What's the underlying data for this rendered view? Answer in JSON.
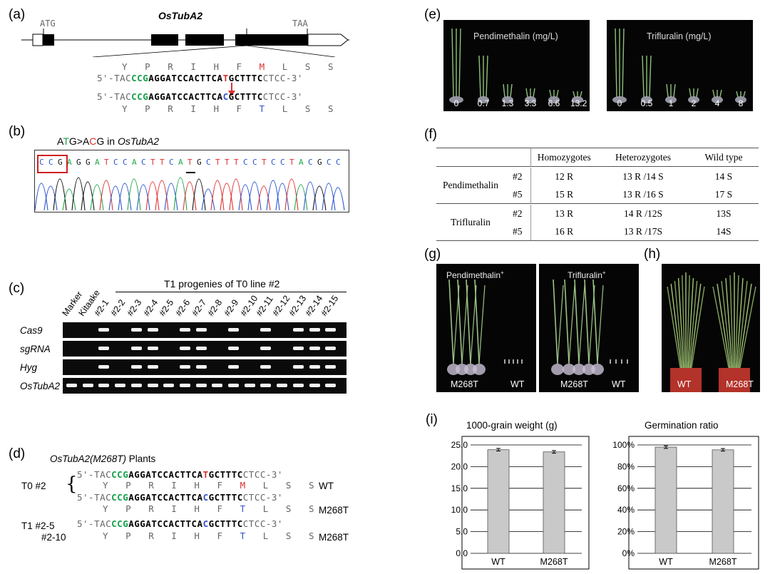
{
  "panels": {
    "a": "(a)",
    "b": "(b)",
    "c": "(c)",
    "d": "(d)",
    "e": "(e)",
    "f": "(f)",
    "g": "(g)",
    "h": "(h)",
    "i": "(i)"
  },
  "panel_a": {
    "gene": "OsTubA2",
    "start_codon": "ATG",
    "stop_codon": "TAA",
    "aa_wt": [
      "Y",
      "P",
      "R",
      "I",
      "H",
      "F",
      "M",
      "L",
      "S",
      "S"
    ],
    "aa_mut": [
      "Y",
      "P",
      "R",
      "I",
      "H",
      "F",
      "T",
      "L",
      "S",
      "S"
    ],
    "seq_wt": {
      "p1": "5'-TAC",
      "p2": "CCG",
      "p3": "AGGATCCACTTCA",
      "p4": "T",
      "p5": "GCTTTC",
      "p6": "CTCC-3'"
    },
    "seq_mut": {
      "p1": "5'-TAC",
      "p2": "CCG",
      "p3": "AGGATCCACTTCA",
      "p4": "C",
      "p5": "GCTTTC",
      "p6": "CTCC-3'"
    }
  },
  "panel_b": {
    "title_pre": "A",
    "title_t": "T",
    "title_mid": "G>A",
    "title_c": "C",
    "title_post": "G  in ",
    "title_gene": "OsTubA2",
    "bases": [
      "C",
      "C",
      "G",
      "A",
      "G",
      "G",
      "A",
      "T",
      "C",
      "C",
      "A",
      "C",
      "T",
      "T",
      "C",
      "A",
      "T",
      "G",
      "C",
      "T",
      "T",
      "T",
      "C",
      "C",
      "T",
      "C",
      "C",
      "T",
      "A",
      "C",
      "G",
      "C",
      "C"
    ]
  },
  "panel_c": {
    "header": "T1 progenies of T0 line #2",
    "lanes": [
      "Marker",
      "Kitaake",
      "#2-1",
      "#2-2",
      "#2-3",
      "#2-4",
      "#2-5",
      "#2-6",
      "#2-7",
      "#2-8",
      "#2-9",
      "#2-10",
      "#2-11",
      "#2-12",
      "#2-13",
      "#2-14",
      "#2-15"
    ],
    "rows": [
      {
        "name": "Cas9",
        "bands": [
          0,
          0,
          1,
          0,
          1,
          1,
          0,
          1,
          1,
          0,
          1,
          0,
          1,
          0,
          1,
          1,
          1
        ]
      },
      {
        "name": "sgRNA",
        "bands": [
          0,
          0,
          1,
          0,
          1,
          1,
          0,
          1,
          1,
          0,
          1,
          0,
          1,
          0,
          1,
          1,
          1
        ]
      },
      {
        "name": "Hyg",
        "bands": [
          0,
          0,
          1,
          0,
          1,
          1,
          0,
          1,
          1,
          0,
          1,
          0,
          1,
          0,
          1,
          1,
          1
        ]
      },
      {
        "name": "OsTubA2",
        "bands": [
          1,
          1,
          1,
          1,
          1,
          1,
          1,
          1,
          1,
          1,
          1,
          1,
          1,
          1,
          1,
          1,
          1
        ]
      }
    ]
  },
  "panel_d": {
    "title_gene": "OsTubA2(M268T)",
    "title_suffix": " Plants",
    "t0": "T0  #2",
    "t1a": "T1  #2-5",
    "t1b": "#2-10",
    "wt": "WT",
    "m268t": "M268T",
    "aa1": "Y   P   R   I   H   F   ",
    "aa1_m": "M",
    "aa1_end": "   L   S   S",
    "aa2": "Y   P   R   I   H   F   ",
    "aa2_m": "T",
    "aa2_end": "   L   S   S"
  },
  "panel_e": {
    "left_title": "Pendimethalin (mg/L)",
    "left_doses": [
      "0",
      "0.7",
      "1.3",
      "3.3",
      "6.6",
      "13.2"
    ],
    "right_title": "Trifluralin (mg/L)",
    "right_doses": [
      "0",
      "0.5",
      "1",
      "2",
      "4",
      "8"
    ]
  },
  "panel_f": {
    "headers": [
      "Homozygotes",
      "Heterozygotes",
      "Wild type"
    ],
    "groups": [
      {
        "name": "Pendimethalin",
        "rows": [
          [
            "#2",
            "12 R",
            "13 R /14 S",
            "14 S"
          ],
          [
            "#5",
            "15 R",
            "13 R /16 S",
            "17 S"
          ]
        ]
      },
      {
        "name": "Trifluralin",
        "rows": [
          [
            "#2",
            "13 R",
            "14 R /12S",
            "13S"
          ],
          [
            "#5",
            "16 R",
            "13 R /17S",
            "14S"
          ]
        ]
      }
    ]
  },
  "panel_g": {
    "left_title": "Pendimethalin",
    "right_title": "Trifluralin",
    "plus": "+",
    "m268t": "M268T",
    "wt": "WT"
  },
  "panel_h": {
    "wt": "WT",
    "m268t": "M268T"
  },
  "chart_data": [
    {
      "type": "bar",
      "title": "1000-grain weight (g)",
      "categories": [
        "WT",
        "M268T"
      ],
      "values": [
        23.9,
        23.4
      ],
      "ylim": [
        0,
        25
      ],
      "yticks": [
        "0.0",
        "5.0",
        "10.0",
        "15.0",
        "20.0",
        "25.0"
      ],
      "grid": true,
      "error_bars": true
    },
    {
      "type": "bar",
      "title": "Germination ratio",
      "categories": [
        "WT",
        "M268T"
      ],
      "values": [
        98,
        95.5
      ],
      "ylim": [
        0,
        100
      ],
      "yticks": [
        "0%",
        "20%",
        "40%",
        "60%",
        "80%",
        "100%"
      ],
      "grid": true,
      "error_bars": true
    }
  ]
}
